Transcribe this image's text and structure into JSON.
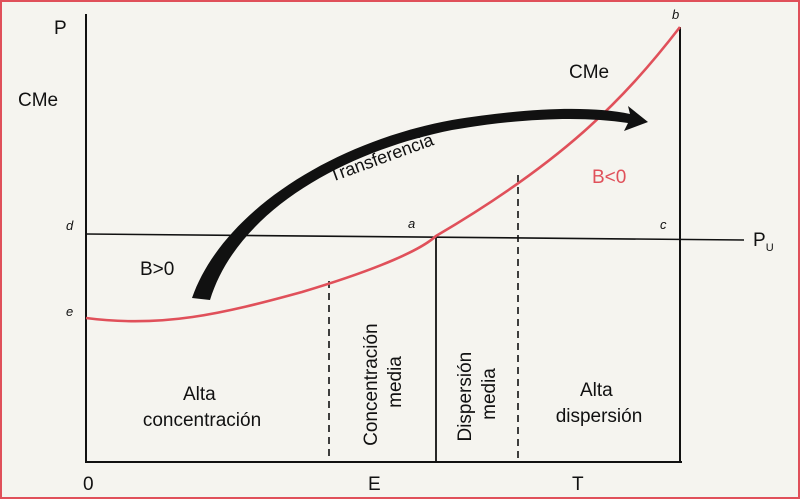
{
  "labels": {
    "p_axis": "P",
    "cme_axis": "CMe",
    "cme_curve": "CMe",
    "transfer": "Transferencia",
    "b_neg": "B<0",
    "b_pos": "B>0",
    "pu": "P",
    "pu_sub": "U",
    "pt_a": "a",
    "pt_b": "b",
    "pt_c": "c",
    "pt_d": "d",
    "pt_e": "e",
    "x_origin": "0",
    "x_e": "E",
    "x_t": "T"
  },
  "regions": {
    "alta_concentracion": [
      "Alta",
      "concentración"
    ],
    "concentracion_media": [
      "Concentración",
      "media"
    ],
    "dispersion_media": [
      "Dispersión",
      "media"
    ],
    "alta_dispersion": [
      "Alta",
      "dispersión"
    ]
  },
  "colors": {
    "curve": "#e0505a",
    "ink": "#111111",
    "background": "#f5f4ef",
    "border": "#e0505a"
  }
}
